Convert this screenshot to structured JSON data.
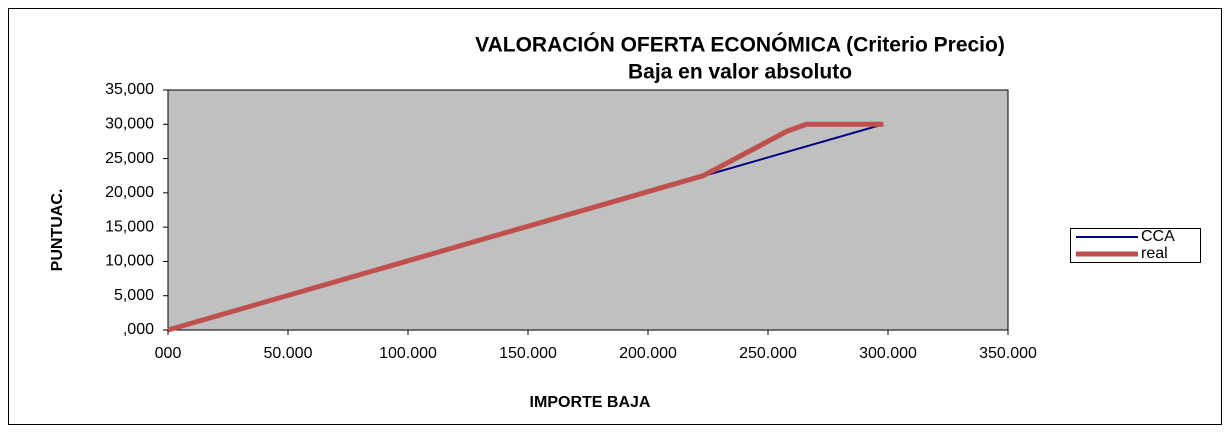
{
  "chart_data": {
    "type": "line",
    "title": "VALORACIÓN OFERTA ECONÓMICA (Criterio Precio)",
    "subtitle": "Baja en valor absoluto",
    "x_label": "IMPORTE BAJA",
    "y_label": "PUNTUAC.",
    "series": [
      {
        "name": "CCA",
        "color": "#000080",
        "x": [
          0,
          298000
        ],
        "values": [
          0,
          30000
        ]
      },
      {
        "name": "real",
        "color": "#c0504d",
        "x": [
          0,
          223000,
          258000,
          266000,
          298000
        ],
        "values": [
          0,
          22500,
          29000,
          30000,
          30000
        ]
      }
    ],
    "xlim": [
      0,
      350000
    ],
    "xticks": [
      {
        "value": 0,
        "label": "000"
      },
      {
        "value": 50000,
        "label": "50.000"
      },
      {
        "value": 100000,
        "label": "100.000"
      },
      {
        "value": 150000,
        "label": "150.000"
      },
      {
        "value": 200000,
        "label": "200.000"
      },
      {
        "value": 250000,
        "label": "250.000"
      },
      {
        "value": 300000,
        "label": "300.000"
      },
      {
        "value": 350000,
        "label": "350.000"
      }
    ],
    "ylim": [
      0,
      35000
    ],
    "yticks": [
      {
        "value": 0,
        "label": ",000"
      },
      {
        "value": 5000,
        "label": "5,000"
      },
      {
        "value": 10000,
        "label": "10,000"
      },
      {
        "value": 15000,
        "label": "15,000"
      },
      {
        "value": 20000,
        "label": "20,000"
      },
      {
        "value": 25000,
        "label": "25,000"
      },
      {
        "value": 30000,
        "label": "30,000"
      },
      {
        "value": 35000,
        "label": "35,000"
      }
    ],
    "grid": false,
    "legend": "right"
  }
}
